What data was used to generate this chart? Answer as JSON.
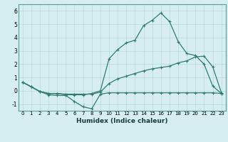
{
  "xlabel": "Humidex (Indice chaleur)",
  "x": [
    0,
    1,
    2,
    3,
    4,
    5,
    6,
    7,
    8,
    9,
    10,
    11,
    12,
    13,
    14,
    15,
    16,
    17,
    18,
    19,
    20,
    21,
    22,
    23
  ],
  "line_max": [
    0.65,
    0.3,
    -0.05,
    -0.2,
    -0.2,
    -0.3,
    -0.3,
    -0.3,
    -0.2,
    0.0,
    2.4,
    3.1,
    3.6,
    3.8,
    4.9,
    5.3,
    5.85,
    5.2,
    3.7,
    2.8,
    2.65,
    2.0,
    0.35,
    -0.2
  ],
  "line_mean": [
    0.65,
    0.3,
    -0.05,
    -0.2,
    -0.2,
    -0.25,
    -0.25,
    -0.25,
    -0.25,
    -0.1,
    0.55,
    0.9,
    1.1,
    1.3,
    1.5,
    1.65,
    1.75,
    1.85,
    2.1,
    2.25,
    2.55,
    2.6,
    1.8,
    -0.15
  ],
  "line_min": [
    0.65,
    0.3,
    -0.05,
    -0.3,
    -0.35,
    -0.35,
    -0.8,
    -1.2,
    -1.35,
    -0.25,
    -0.15,
    -0.15,
    -0.15,
    -0.15,
    -0.15,
    -0.15,
    -0.15,
    -0.15,
    -0.15,
    -0.15,
    -0.15,
    -0.15,
    -0.15,
    -0.2
  ],
  "color": "#2e7d6e",
  "bg_color": "#d6eef0",
  "grid_color": "#b8d8db",
  "ylim": [
    -1.5,
    6.5
  ],
  "xlim": [
    -0.5,
    23.5
  ],
  "yticks": [
    -1,
    0,
    1,
    2,
    3,
    4,
    5,
    6
  ],
  "xticks": [
    0,
    1,
    2,
    3,
    4,
    5,
    6,
    7,
    8,
    9,
    10,
    11,
    12,
    13,
    14,
    15,
    16,
    17,
    18,
    19,
    20,
    21,
    22,
    23
  ]
}
